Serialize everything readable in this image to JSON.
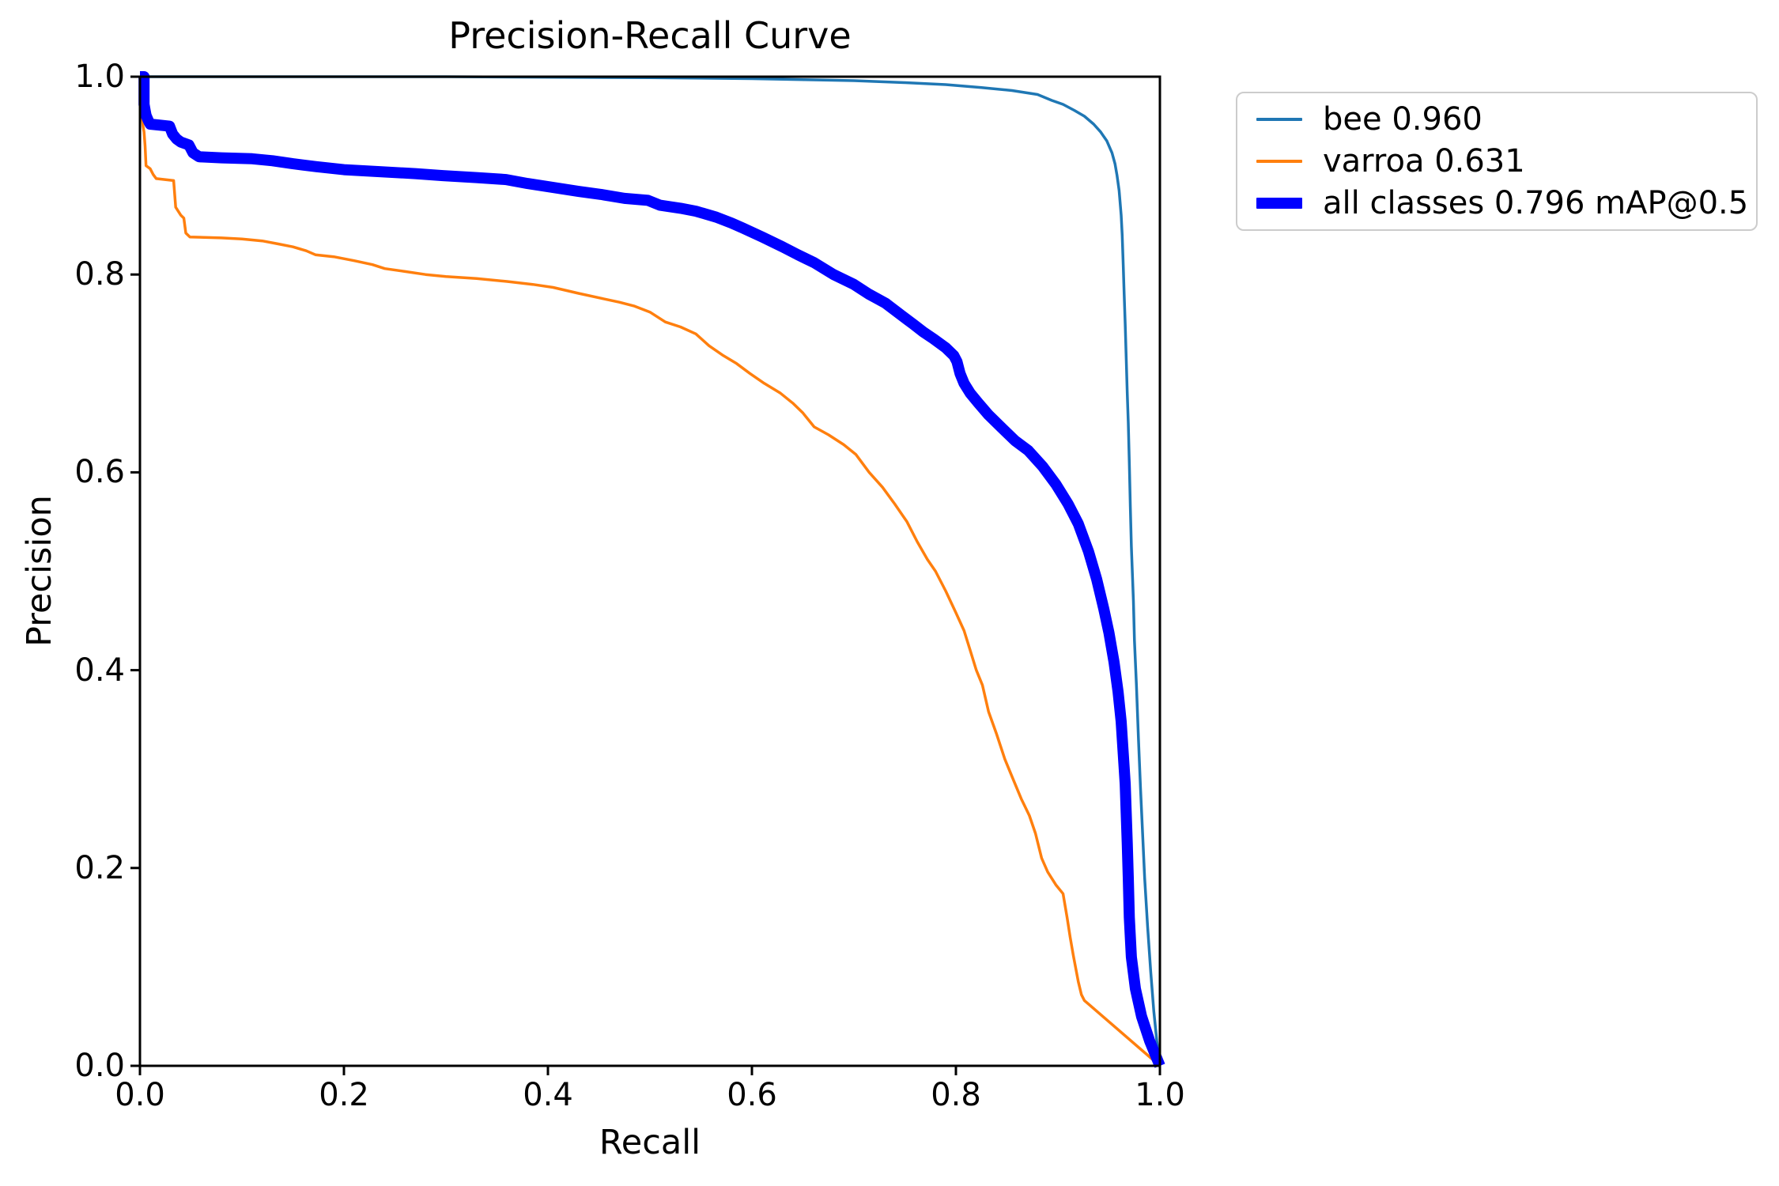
{
  "title": "Precision-Recall Curve",
  "axes": {
    "xlabel": "Recall",
    "ylabel": "Precision",
    "x_ticks": [
      {
        "value": 0.0,
        "label": "0.0"
      },
      {
        "value": 0.2,
        "label": "0.2"
      },
      {
        "value": 0.4,
        "label": "0.4"
      },
      {
        "value": 0.6,
        "label": "0.6"
      },
      {
        "value": 0.8,
        "label": "0.8"
      },
      {
        "value": 1.0,
        "label": "1.0"
      }
    ],
    "y_ticks": [
      {
        "value": 0.0,
        "label": "0.0"
      },
      {
        "value": 0.2,
        "label": "0.2"
      },
      {
        "value": 0.4,
        "label": "0.4"
      },
      {
        "value": 0.6,
        "label": "0.6"
      },
      {
        "value": 0.8,
        "label": "0.8"
      },
      {
        "value": 1.0,
        "label": "1.0"
      }
    ],
    "spine_color": "#000000"
  },
  "legend": {
    "items": [
      {
        "label": "bee 0.960",
        "color": "#1f77b4",
        "swatch_height": 4
      },
      {
        "label": "varroa 0.631",
        "color": "#ff7f0e",
        "swatch_height": 4
      },
      {
        "label": "all classes 0.796 mAP@0.5",
        "color": "#0000ff",
        "swatch_height": 14
      }
    ]
  },
  "chart_data": {
    "type": "line",
    "title": "Precision-Recall Curve",
    "xlabel": "Recall",
    "ylabel": "Precision",
    "xlim": [
      0,
      1
    ],
    "ylim": [
      0,
      1
    ],
    "grid": false,
    "legend_position": "outside upper right",
    "series": [
      {
        "name": "bee 0.960",
        "color": "#1f77b4",
        "linewidth": 3.5,
        "points": [
          [
            0.0,
            1.0
          ],
          [
            0.3,
            1.0
          ],
          [
            0.5,
            0.999
          ],
          [
            0.6,
            0.998
          ],
          [
            0.65,
            0.997
          ],
          [
            0.7,
            0.996
          ],
          [
            0.75,
            0.994
          ],
          [
            0.79,
            0.992
          ],
          [
            0.825,
            0.989
          ],
          [
            0.855,
            0.986
          ],
          [
            0.88,
            0.982
          ],
          [
            0.894,
            0.976
          ],
          [
            0.905,
            0.972
          ],
          [
            0.916,
            0.966
          ],
          [
            0.926,
            0.96
          ],
          [
            0.935,
            0.952
          ],
          [
            0.942,
            0.944
          ],
          [
            0.948,
            0.935
          ],
          [
            0.953,
            0.923
          ],
          [
            0.956,
            0.912
          ],
          [
            0.958,
            0.9
          ],
          [
            0.96,
            0.885
          ],
          [
            0.962,
            0.86
          ],
          [
            0.963,
            0.84
          ],
          [
            0.964,
            0.81
          ],
          [
            0.965,
            0.78
          ],
          [
            0.966,
            0.75
          ],
          [
            0.967,
            0.715
          ],
          [
            0.968,
            0.68
          ],
          [
            0.969,
            0.65
          ],
          [
            0.97,
            0.61
          ],
          [
            0.971,
            0.565
          ],
          [
            0.972,
            0.525
          ],
          [
            0.974,
            0.47
          ],
          [
            0.975,
            0.43
          ],
          [
            0.977,
            0.385
          ],
          [
            0.979,
            0.33
          ],
          [
            0.981,
            0.28
          ],
          [
            0.983,
            0.235
          ],
          [
            0.985,
            0.19
          ],
          [
            0.988,
            0.14
          ],
          [
            0.991,
            0.095
          ],
          [
            0.994,
            0.055
          ],
          [
            0.997,
            0.025
          ],
          [
            1.0,
            0.0
          ]
        ]
      },
      {
        "name": "varroa 0.631",
        "color": "#ff7f0e",
        "linewidth": 3.5,
        "points": [
          [
            0.0,
            1.0
          ],
          [
            0.002,
            0.962
          ],
          [
            0.003,
            0.95
          ],
          [
            0.004,
            0.944
          ],
          [
            0.005,
            0.93
          ],
          [
            0.006,
            0.91
          ],
          [
            0.01,
            0.907
          ],
          [
            0.013,
            0.901
          ],
          [
            0.016,
            0.897
          ],
          [
            0.033,
            0.895
          ],
          [
            0.035,
            0.868
          ],
          [
            0.04,
            0.86
          ],
          [
            0.043,
            0.857
          ],
          [
            0.045,
            0.842
          ],
          [
            0.049,
            0.838
          ],
          [
            0.08,
            0.837
          ],
          [
            0.1,
            0.836
          ],
          [
            0.12,
            0.834
          ],
          [
            0.135,
            0.831
          ],
          [
            0.15,
            0.828
          ],
          [
            0.163,
            0.824
          ],
          [
            0.172,
            0.82
          ],
          [
            0.19,
            0.818
          ],
          [
            0.21,
            0.814
          ],
          [
            0.228,
            0.81
          ],
          [
            0.24,
            0.806
          ],
          [
            0.26,
            0.803
          ],
          [
            0.28,
            0.8
          ],
          [
            0.3,
            0.798
          ],
          [
            0.33,
            0.796
          ],
          [
            0.36,
            0.793
          ],
          [
            0.385,
            0.79
          ],
          [
            0.405,
            0.787
          ],
          [
            0.43,
            0.781
          ],
          [
            0.452,
            0.776
          ],
          [
            0.47,
            0.772
          ],
          [
            0.485,
            0.768
          ],
          [
            0.5,
            0.762
          ],
          [
            0.515,
            0.752
          ],
          [
            0.53,
            0.747
          ],
          [
            0.545,
            0.74
          ],
          [
            0.558,
            0.728
          ],
          [
            0.572,
            0.718
          ],
          [
            0.585,
            0.71
          ],
          [
            0.598,
            0.7
          ],
          [
            0.612,
            0.69
          ],
          [
            0.628,
            0.68
          ],
          [
            0.64,
            0.67
          ],
          [
            0.65,
            0.66
          ],
          [
            0.661,
            0.646
          ],
          [
            0.675,
            0.638
          ],
          [
            0.69,
            0.628
          ],
          [
            0.702,
            0.618
          ],
          [
            0.715,
            0.6
          ],
          [
            0.728,
            0.585
          ],
          [
            0.74,
            0.568
          ],
          [
            0.752,
            0.55
          ],
          [
            0.762,
            0.53
          ],
          [
            0.772,
            0.512
          ],
          [
            0.78,
            0.5
          ],
          [
            0.79,
            0.48
          ],
          [
            0.8,
            0.458
          ],
          [
            0.808,
            0.44
          ],
          [
            0.814,
            0.42
          ],
          [
            0.82,
            0.4
          ],
          [
            0.826,
            0.385
          ],
          [
            0.832,
            0.358
          ],
          [
            0.84,
            0.335
          ],
          [
            0.848,
            0.31
          ],
          [
            0.856,
            0.29
          ],
          [
            0.864,
            0.27
          ],
          [
            0.872,
            0.253
          ],
          [
            0.878,
            0.235
          ],
          [
            0.884,
            0.21
          ],
          [
            0.89,
            0.196
          ],
          [
            0.898,
            0.183
          ],
          [
            0.905,
            0.174
          ],
          [
            0.909,
            0.15
          ],
          [
            0.912,
            0.13
          ],
          [
            0.915,
            0.112
          ],
          [
            0.92,
            0.085
          ],
          [
            0.923,
            0.072
          ],
          [
            0.926,
            0.066
          ],
          [
            1.0,
            0.0
          ]
        ]
      },
      {
        "name": "all classes 0.796 mAP@0.5",
        "color": "#0000ff",
        "linewidth": 14,
        "points": [
          [
            0.0,
            1.0
          ],
          [
            0.004,
            1.0
          ],
          [
            0.004,
            0.972
          ],
          [
            0.005,
            0.966
          ],
          [
            0.006,
            0.961
          ],
          [
            0.008,
            0.956
          ],
          [
            0.01,
            0.952
          ],
          [
            0.029,
            0.95
          ],
          [
            0.032,
            0.942
          ],
          [
            0.036,
            0.937
          ],
          [
            0.04,
            0.934
          ],
          [
            0.048,
            0.931
          ],
          [
            0.052,
            0.923
          ],
          [
            0.058,
            0.919
          ],
          [
            0.08,
            0.918
          ],
          [
            0.11,
            0.917
          ],
          [
            0.13,
            0.915
          ],
          [
            0.15,
            0.912
          ],
          [
            0.173,
            0.909
          ],
          [
            0.2,
            0.906
          ],
          [
            0.235,
            0.904
          ],
          [
            0.27,
            0.902
          ],
          [
            0.297,
            0.9
          ],
          [
            0.33,
            0.898
          ],
          [
            0.359,
            0.896
          ],
          [
            0.38,
            0.892
          ],
          [
            0.405,
            0.888
          ],
          [
            0.43,
            0.884
          ],
          [
            0.452,
            0.881
          ],
          [
            0.475,
            0.877
          ],
          [
            0.498,
            0.875
          ],
          [
            0.51,
            0.87
          ],
          [
            0.53,
            0.867
          ],
          [
            0.545,
            0.864
          ],
          [
            0.565,
            0.858
          ],
          [
            0.58,
            0.852
          ],
          [
            0.591,
            0.847
          ],
          [
            0.61,
            0.838
          ],
          [
            0.63,
            0.828
          ],
          [
            0.645,
            0.82
          ],
          [
            0.661,
            0.812
          ],
          [
            0.68,
            0.8
          ],
          [
            0.7,
            0.79
          ],
          [
            0.715,
            0.78
          ],
          [
            0.731,
            0.771
          ],
          [
            0.745,
            0.76
          ],
          [
            0.758,
            0.75
          ],
          [
            0.768,
            0.742
          ],
          [
            0.778,
            0.735
          ],
          [
            0.79,
            0.726
          ],
          [
            0.798,
            0.718
          ],
          [
            0.801,
            0.712
          ],
          [
            0.804,
            0.7
          ],
          [
            0.808,
            0.69
          ],
          [
            0.814,
            0.68
          ],
          [
            0.822,
            0.67
          ],
          [
            0.832,
            0.658
          ],
          [
            0.845,
            0.645
          ],
          [
            0.858,
            0.632
          ],
          [
            0.871,
            0.622
          ],
          [
            0.885,
            0.606
          ],
          [
            0.898,
            0.588
          ],
          [
            0.91,
            0.568
          ],
          [
            0.92,
            0.548
          ],
          [
            0.93,
            0.52
          ],
          [
            0.938,
            0.492
          ],
          [
            0.945,
            0.462
          ],
          [
            0.95,
            0.438
          ],
          [
            0.955,
            0.408
          ],
          [
            0.959,
            0.378
          ],
          [
            0.962,
            0.348
          ],
          [
            0.964,
            0.316
          ],
          [
            0.966,
            0.285
          ],
          [
            0.967,
            0.255
          ],
          [
            0.968,
            0.225
          ],
          [
            0.969,
            0.19
          ],
          [
            0.97,
            0.15
          ],
          [
            0.972,
            0.11
          ],
          [
            0.976,
            0.078
          ],
          [
            0.982,
            0.05
          ],
          [
            0.99,
            0.025
          ],
          [
            1.0,
            0.0
          ]
        ]
      }
    ]
  }
}
